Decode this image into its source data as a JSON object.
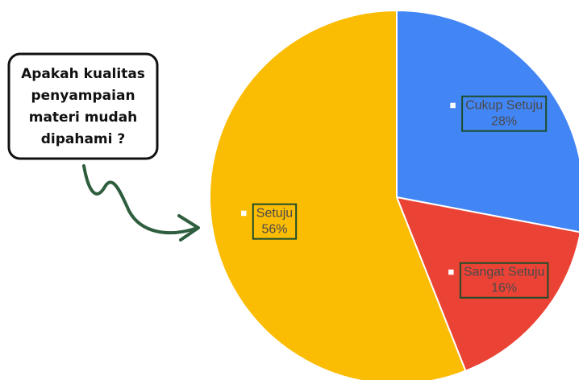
{
  "chart_data": {
    "type": "pie",
    "annotation": [
      "Apakah kualitas",
      "penyampaian",
      "materi mudah",
      "dipahami ?"
    ],
    "categories": [
      "Cukup Setuju",
      "Sangat Setuju",
      "Setuju"
    ],
    "values": [
      28,
      16,
      56
    ],
    "value_labels": [
      "28%",
      "16%",
      "56%"
    ],
    "colors": [
      "#4285f4",
      "#ea4335",
      "#fbbc04"
    ]
  }
}
